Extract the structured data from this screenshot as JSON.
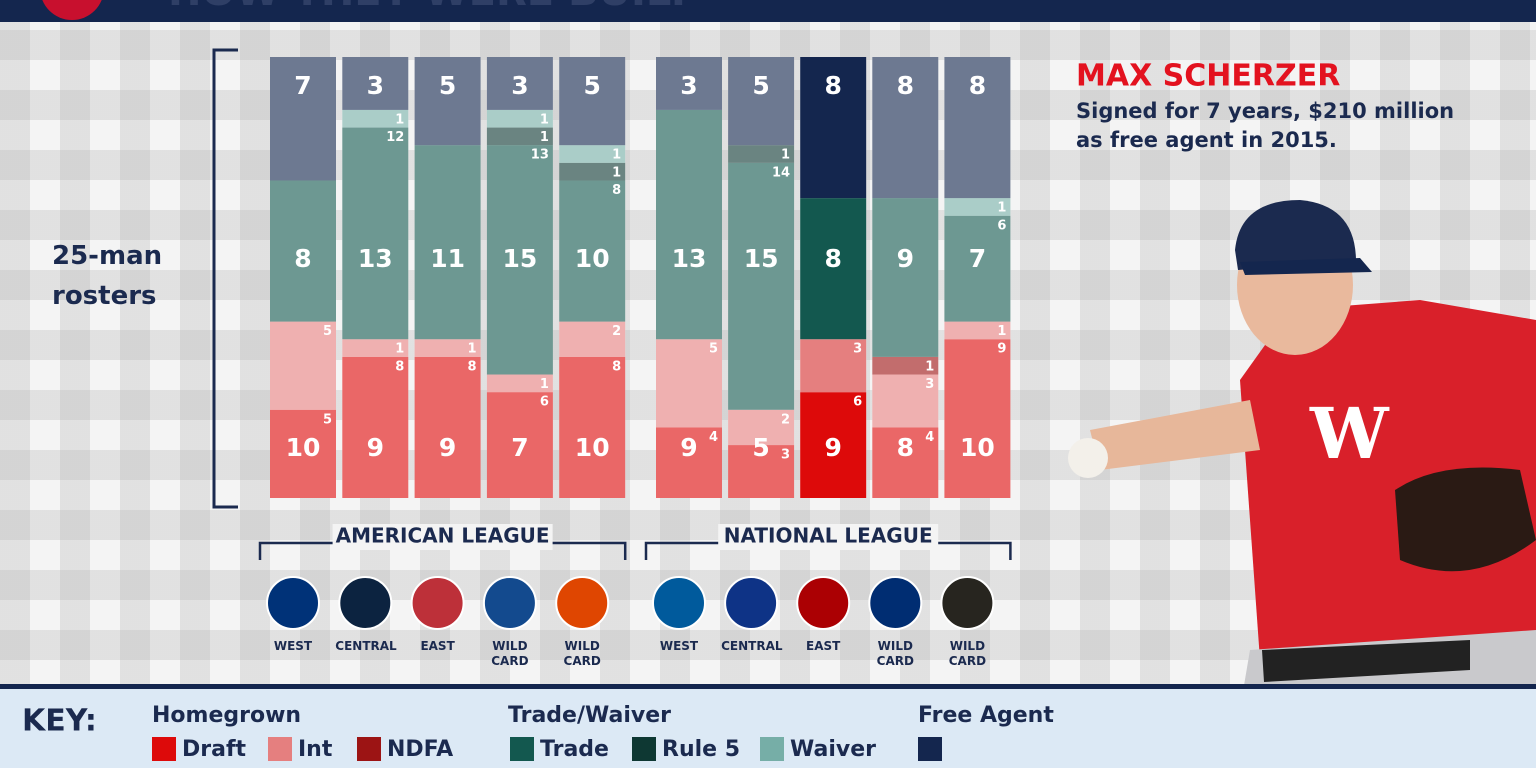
{
  "title": "HOW THEY WERE BUILT",
  "chart_data": {
    "type": "stacked-bar",
    "axis_label": "25-man rosters",
    "ylim": [
      0,
      25
    ],
    "categories": [
      "WEST",
      "CENTRAL",
      "EAST",
      "WILD CARD",
      "WILD CARD",
      "WEST",
      "CENTRAL",
      "EAST",
      "WILD CARD",
      "WILD CARD"
    ],
    "leagues": [
      {
        "name": "AMERICAN LEAGUE",
        "span": [
          0,
          4
        ]
      },
      {
        "name": "NATIONAL LEAGUE",
        "span": [
          5,
          9
        ]
      }
    ],
    "highlight": 7,
    "groups": [
      {
        "name": "Homegrown",
        "totals": [
          10,
          9,
          9,
          7,
          10,
          9,
          5,
          9,
          8,
          10
        ],
        "series": [
          {
            "name": "Draft",
            "color": "#dd0a0a",
            "values": [
              5,
              8,
              8,
              6,
              8,
              4,
              3,
              6,
              4,
              9
            ]
          },
          {
            "name": "Int",
            "color": "#e57f7f",
            "values": [
              5,
              1,
              1,
              1,
              2,
              5,
              2,
              3,
              3,
              1
            ]
          },
          {
            "name": "NDFA",
            "color": "#9c1414",
            "values": [
              0,
              0,
              0,
              0,
              0,
              0,
              0,
              0,
              1,
              0
            ]
          }
        ]
      },
      {
        "name": "Trade/Waiver",
        "totals": [
          8,
          13,
          11,
          15,
          10,
          13,
          15,
          8,
          9,
          7
        ],
        "series": [
          {
            "name": "Trade",
            "color": "#13584f",
            "values": [
              8,
              12,
              11,
              13,
              8,
              13,
              14,
              8,
              9,
              6
            ]
          },
          {
            "name": "Rule 5",
            "color": "#0e3833",
            "values": [
              0,
              0,
              0,
              1,
              1,
              0,
              1,
              0,
              0,
              0
            ]
          },
          {
            "name": "Waiver",
            "color": "#76aea7",
            "values": [
              0,
              1,
              0,
              1,
              1,
              0,
              0,
              0,
              0,
              1
            ]
          }
        ]
      },
      {
        "name": "Free Agent",
        "totals": [
          7,
          3,
          5,
          3,
          5,
          3,
          5,
          8,
          8,
          8
        ],
        "series": [
          {
            "color": "#14264e",
            "values": [
              7,
              3,
              5,
              3,
              5,
              3,
              5,
              8,
              8,
              8
            ]
          }
        ]
      }
    ]
  },
  "key_label": "KEY:",
  "player": {
    "name": "MAX SCHERZER",
    "description": [
      "Signed for 7 years, $210 million",
      "as free agent in 2015."
    ]
  }
}
